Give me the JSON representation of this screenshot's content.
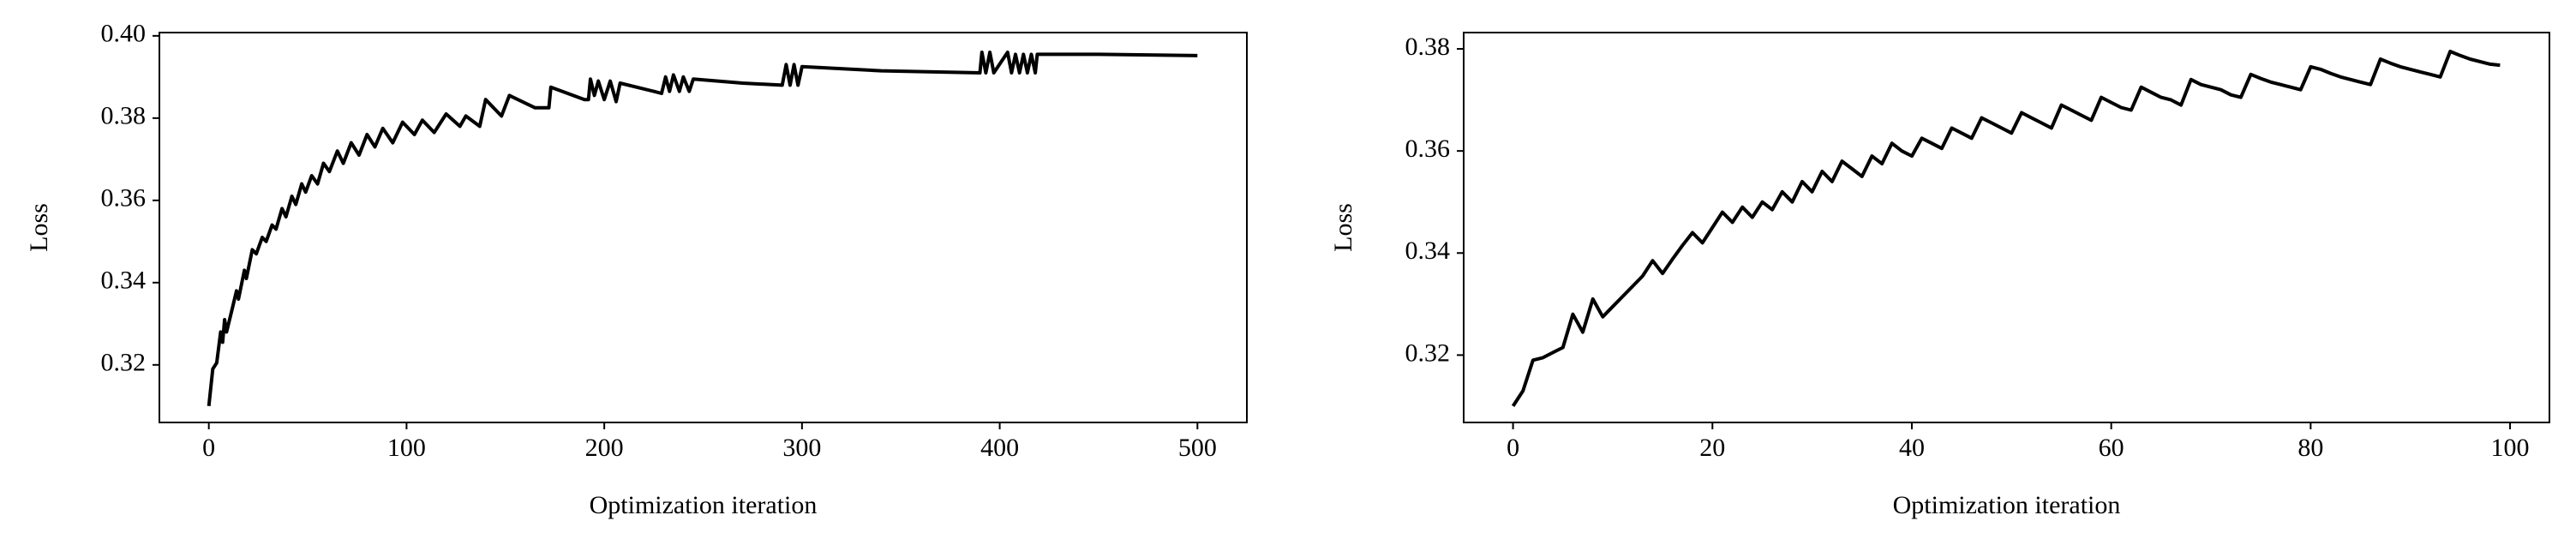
{
  "chart_data": [
    {
      "type": "line",
      "xlabel": "Optimization iteration",
      "ylabel": "Loss",
      "color": "#000000",
      "x": [
        0,
        2,
        4,
        6,
        7,
        8,
        9,
        12,
        14,
        15,
        18,
        19,
        22,
        24,
        27,
        29,
        32,
        34,
        37,
        39,
        42,
        44,
        47,
        49,
        52,
        55,
        58,
        61,
        65,
        68,
        72,
        76,
        80,
        84,
        88,
        93,
        98,
        104,
        108,
        114,
        120,
        127,
        130,
        137,
        140,
        148,
        152,
        165,
        172,
        173,
        190,
        192,
        193,
        195,
        197,
        200,
        203,
        206,
        208,
        225,
        229,
        231,
        233,
        235,
        238,
        240,
        243,
        245,
        270,
        290,
        292,
        294,
        296,
        298,
        300,
        340,
        390,
        391,
        393,
        395,
        397,
        404,
        406,
        408,
        410,
        412,
        414,
        416,
        418,
        419,
        450,
        500
      ],
      "values": [
        0.31,
        0.319,
        0.3205,
        0.328,
        0.3255,
        0.331,
        0.328,
        0.334,
        0.338,
        0.336,
        0.343,
        0.341,
        0.348,
        0.347,
        0.351,
        0.35,
        0.354,
        0.353,
        0.358,
        0.356,
        0.361,
        0.359,
        0.364,
        0.362,
        0.366,
        0.364,
        0.369,
        0.367,
        0.372,
        0.369,
        0.374,
        0.371,
        0.376,
        0.373,
        0.3775,
        0.374,
        0.379,
        0.376,
        0.3795,
        0.3765,
        0.381,
        0.378,
        0.3805,
        0.378,
        0.3845,
        0.3805,
        0.3855,
        0.3825,
        0.3825,
        0.3875,
        0.3845,
        0.3845,
        0.3895,
        0.3855,
        0.389,
        0.3845,
        0.389,
        0.384,
        0.3885,
        0.3865,
        0.386,
        0.39,
        0.3865,
        0.3905,
        0.3865,
        0.39,
        0.3865,
        0.3895,
        0.3885,
        0.388,
        0.393,
        0.388,
        0.393,
        0.388,
        0.3925,
        0.3915,
        0.391,
        0.396,
        0.391,
        0.396,
        0.391,
        0.396,
        0.391,
        0.3955,
        0.391,
        0.3955,
        0.391,
        0.3955,
        0.391,
        0.3955,
        0.3955,
        0.3952
      ],
      "xlim": [
        -25,
        525
      ],
      "ylim": [
        0.306,
        0.4008
      ],
      "xticks": [
        0,
        100,
        200,
        300,
        400,
        500
      ],
      "yticks": [
        0.32,
        0.34,
        0.36,
        0.38,
        {
          "value": 0.4,
          "label": "0.40"
        }
      ]
    },
    {
      "type": "line",
      "xlabel": "Optimization iteration",
      "ylabel": "Loss",
      "color": "#000000",
      "x": [
        0,
        1,
        2,
        3,
        4,
        5,
        6,
        7,
        8,
        9,
        10,
        11,
        12,
        13,
        14,
        15,
        16,
        17,
        18,
        19,
        20,
        21,
        22,
        23,
        24,
        25,
        26,
        27,
        28,
        29,
        30,
        31,
        32,
        33,
        34,
        35,
        36,
        37,
        38,
        39,
        40,
        41,
        42,
        43,
        44,
        45,
        46,
        47,
        48,
        49,
        50,
        51,
        52,
        53,
        54,
        55,
        56,
        57,
        58,
        59,
        60,
        61,
        62,
        63,
        64,
        65,
        66,
        67,
        68,
        69,
        70,
        71,
        72,
        73,
        74,
        75,
        76,
        77,
        78,
        79,
        80,
        81,
        82,
        83,
        84,
        85,
        86,
        87,
        88,
        89,
        90,
        91,
        92,
        93,
        94,
        95,
        96,
        97,
        98,
        99
      ],
      "values": [
        0.31,
        0.313,
        0.319,
        0.3195,
        0.3205,
        0.3215,
        0.328,
        0.3245,
        0.331,
        0.3275,
        0.3295,
        0.3315,
        0.3335,
        0.3355,
        0.3385,
        0.336,
        0.3388,
        0.3415,
        0.344,
        0.342,
        0.345,
        0.348,
        0.346,
        0.349,
        0.347,
        0.35,
        0.3485,
        0.352,
        0.35,
        0.354,
        0.352,
        0.356,
        0.354,
        0.358,
        0.3565,
        0.355,
        0.359,
        0.3575,
        0.3615,
        0.36,
        0.359,
        0.3625,
        0.3615,
        0.3605,
        0.3645,
        0.3635,
        0.3625,
        0.3665,
        0.3655,
        0.3645,
        0.3635,
        0.3675,
        0.3665,
        0.3655,
        0.3645,
        0.369,
        0.368,
        0.367,
        0.366,
        0.3705,
        0.3695,
        0.3685,
        0.368,
        0.3725,
        0.3715,
        0.3705,
        0.37,
        0.369,
        0.374,
        0.373,
        0.3725,
        0.372,
        0.371,
        0.3705,
        0.375,
        0.3742,
        0.3735,
        0.373,
        0.3725,
        0.372,
        0.3765,
        0.376,
        0.3752,
        0.3745,
        0.374,
        0.3735,
        0.373,
        0.378,
        0.3772,
        0.3765,
        0.376,
        0.3755,
        0.375,
        0.3745,
        0.3795,
        0.3787,
        0.378,
        0.3775,
        0.377,
        0.3768
      ],
      "xlim": [
        -4.95,
        103.95
      ],
      "ylim": [
        0.3068,
        0.3832
      ],
      "xticks": [
        0,
        20,
        40,
        60,
        80,
        100
      ],
      "yticks": [
        0.32,
        0.34,
        0.36,
        0.38
      ]
    }
  ]
}
